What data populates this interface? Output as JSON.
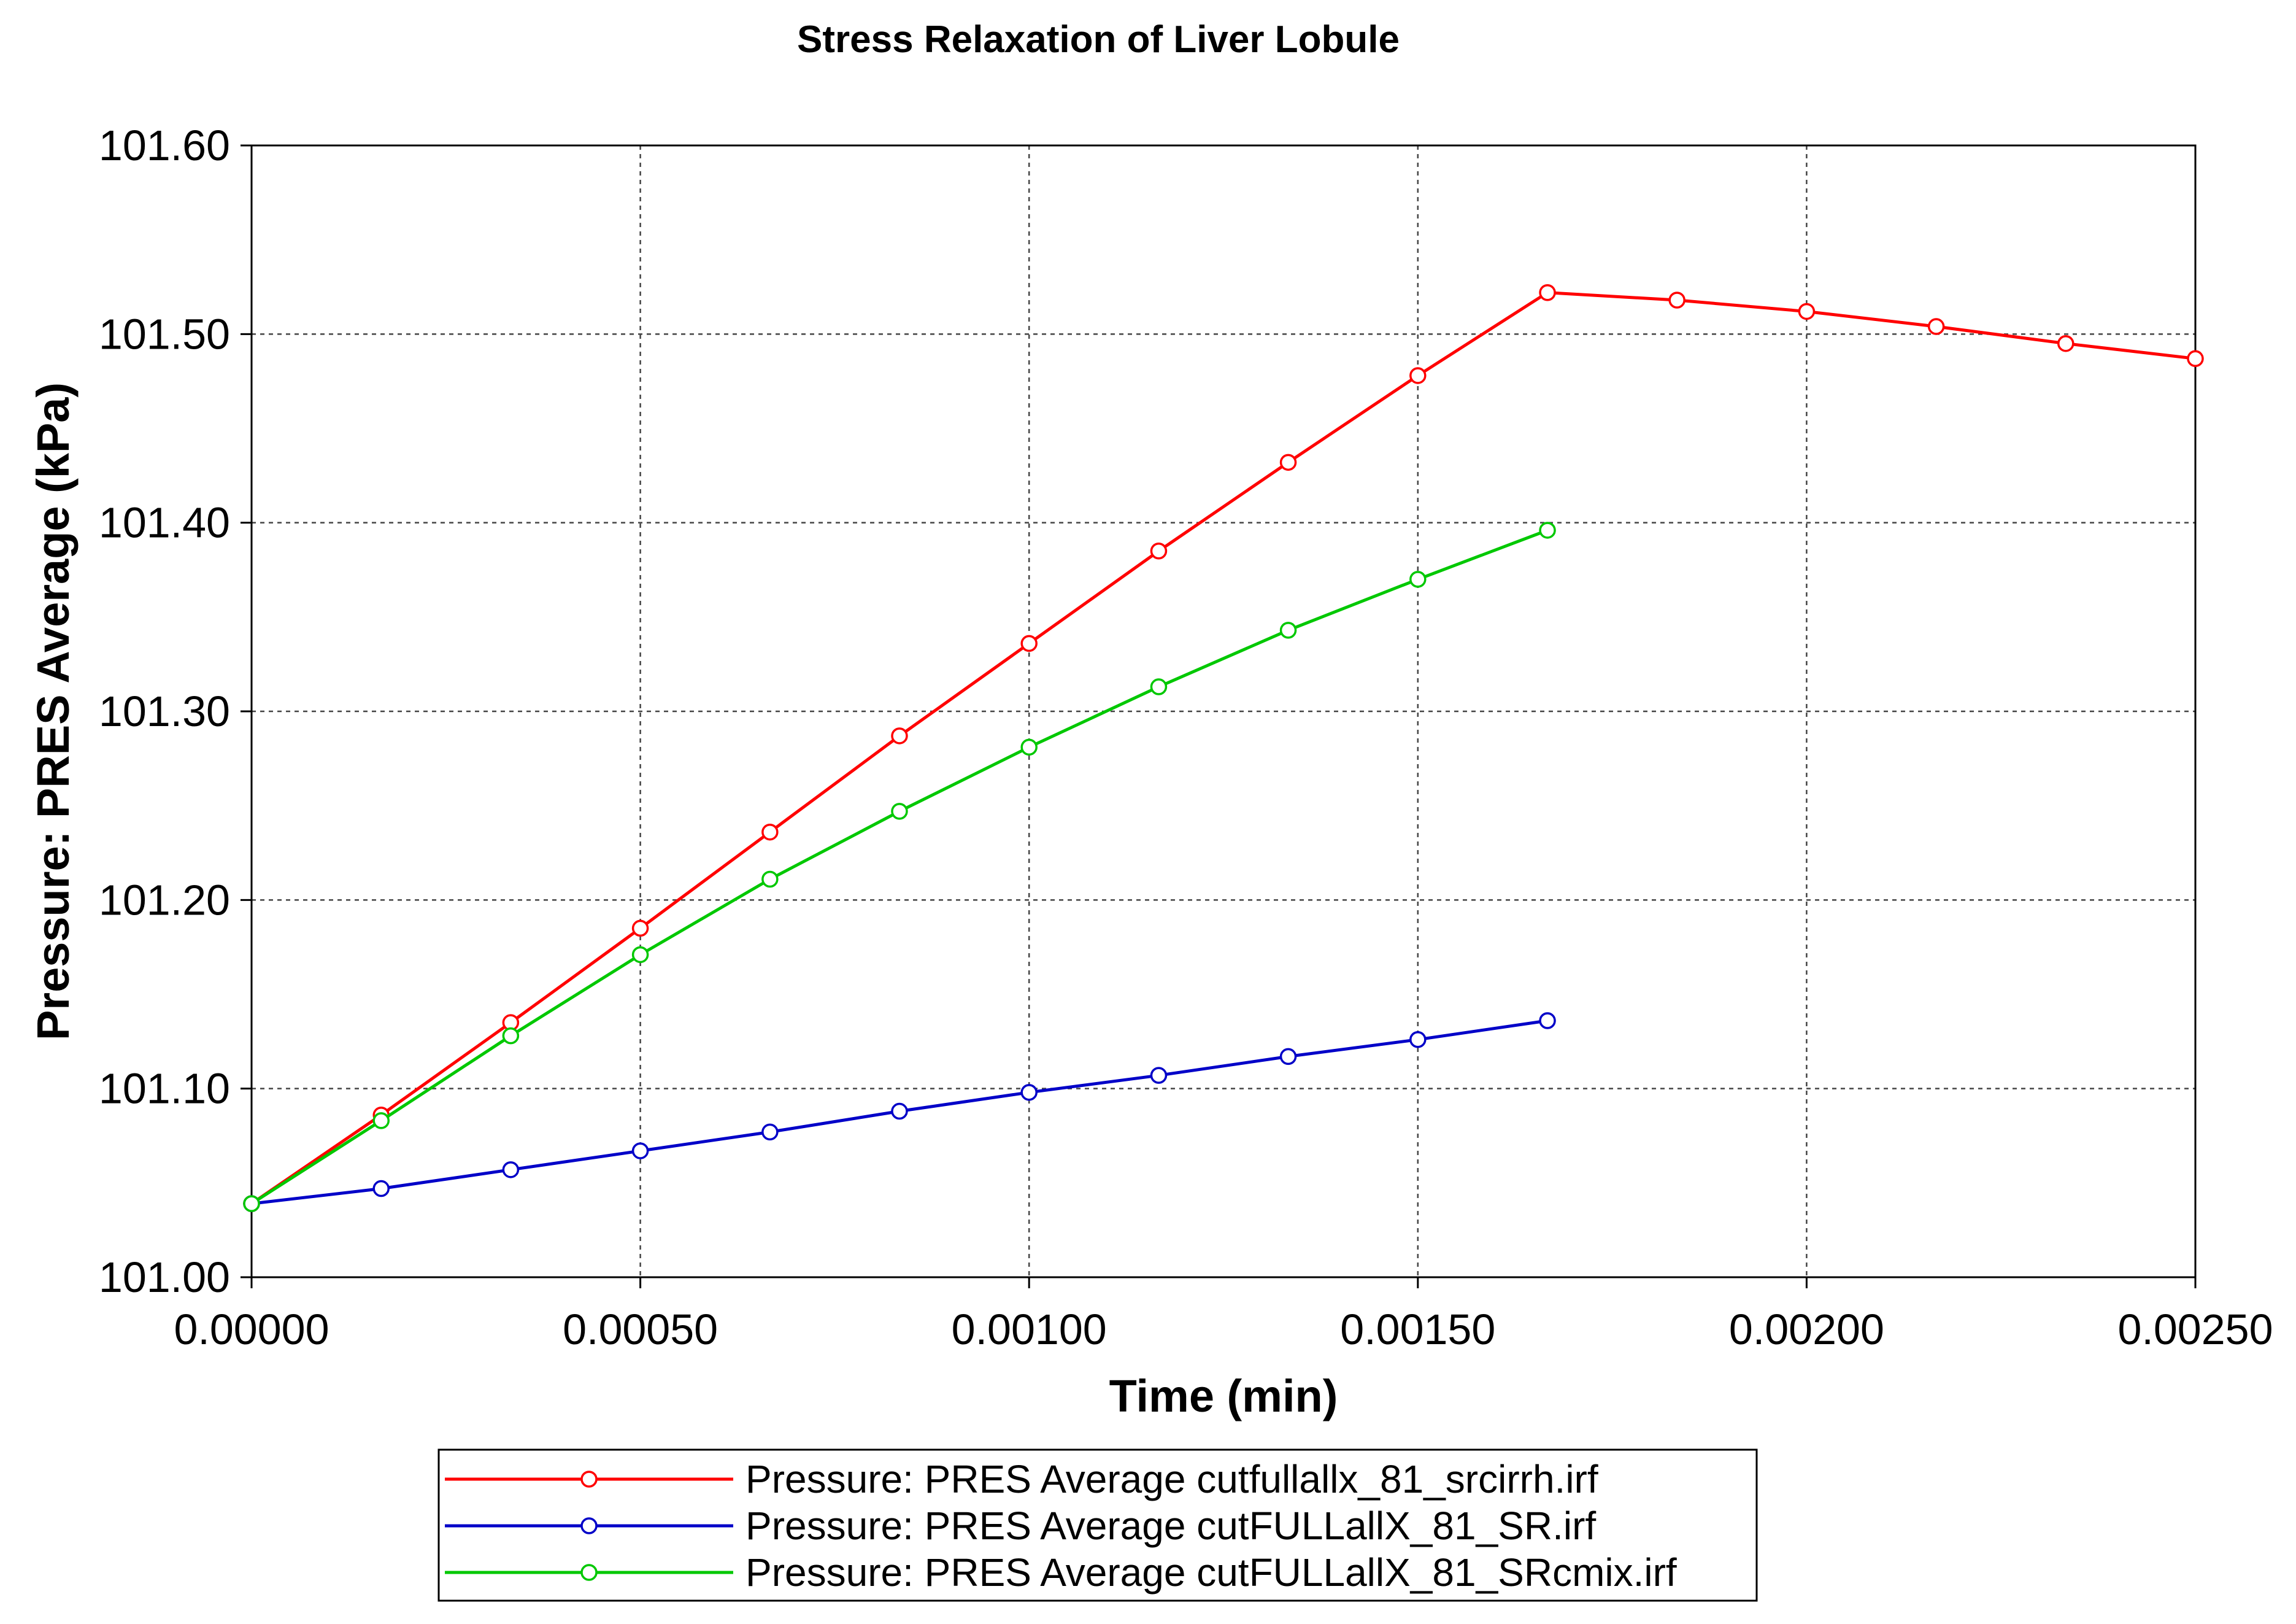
{
  "chart_data": {
    "type": "line",
    "title": "Stress Relaxation of Liver Lobule",
    "xlabel": "Time (min)",
    "ylabel": "Pressure: PRES Average (kPa)",
    "xlim": [
      0,
      0.0025
    ],
    "ylim": [
      101.0,
      101.6
    ],
    "x_ticks": [
      0,
      0.0005,
      0.001,
      0.0015,
      0.002,
      0.0025
    ],
    "x_tick_labels": [
      "0.00000",
      "0.00050",
      "0.00100",
      "0.00150",
      "0.00200",
      "0.00250"
    ],
    "y_ticks": [
      101.0,
      101.1,
      101.2,
      101.3,
      101.4,
      101.5,
      101.6
    ],
    "y_tick_labels": [
      "101.00",
      "101.10",
      "101.20",
      "101.30",
      "101.40",
      "101.50",
      "101.60"
    ],
    "grid": true,
    "legend_position": "bottom",
    "series": [
      {
        "name": "Pressure: PRES Average cutfullallx_81_srcirrh.irf",
        "color": "#ff0000",
        "marker": "open-circle",
        "x": [
          0,
          0.0001667,
          0.0003333,
          0.0005,
          0.0006667,
          0.0008333,
          0.001,
          0.0011667,
          0.0013333,
          0.0015,
          0.0016667,
          0.0018333,
          0.002,
          0.0021667,
          0.0023333,
          0.0025
        ],
        "y": [
          101.039,
          101.086,
          101.135,
          101.185,
          101.236,
          101.287,
          101.336,
          101.385,
          101.432,
          101.478,
          101.522,
          101.518,
          101.512,
          101.504,
          101.495,
          101.487
        ]
      },
      {
        "name": "Pressure: PRES Average cutFULLallX_81_SR.irf",
        "color": "#0000c8",
        "marker": "open-circle",
        "x": [
          0,
          0.0001667,
          0.0003333,
          0.0005,
          0.0006667,
          0.0008333,
          0.001,
          0.0011667,
          0.0013333,
          0.0015,
          0.0016667
        ],
        "y": [
          101.039,
          101.047,
          101.057,
          101.067,
          101.077,
          101.088,
          101.098,
          101.107,
          101.117,
          101.126,
          101.136
        ]
      },
      {
        "name": "Pressure: PRES Average cutFULLallX_81_SRcmix.irf",
        "color": "#00c800",
        "marker": "open-circle",
        "x": [
          0,
          0.0001667,
          0.0003333,
          0.0005,
          0.0006667,
          0.0008333,
          0.001,
          0.0011667,
          0.0013333,
          0.0015,
          0.0016667
        ],
        "y": [
          101.039,
          101.083,
          101.128,
          101.171,
          101.211,
          101.247,
          101.281,
          101.313,
          101.343,
          101.37,
          101.396
        ]
      }
    ]
  }
}
